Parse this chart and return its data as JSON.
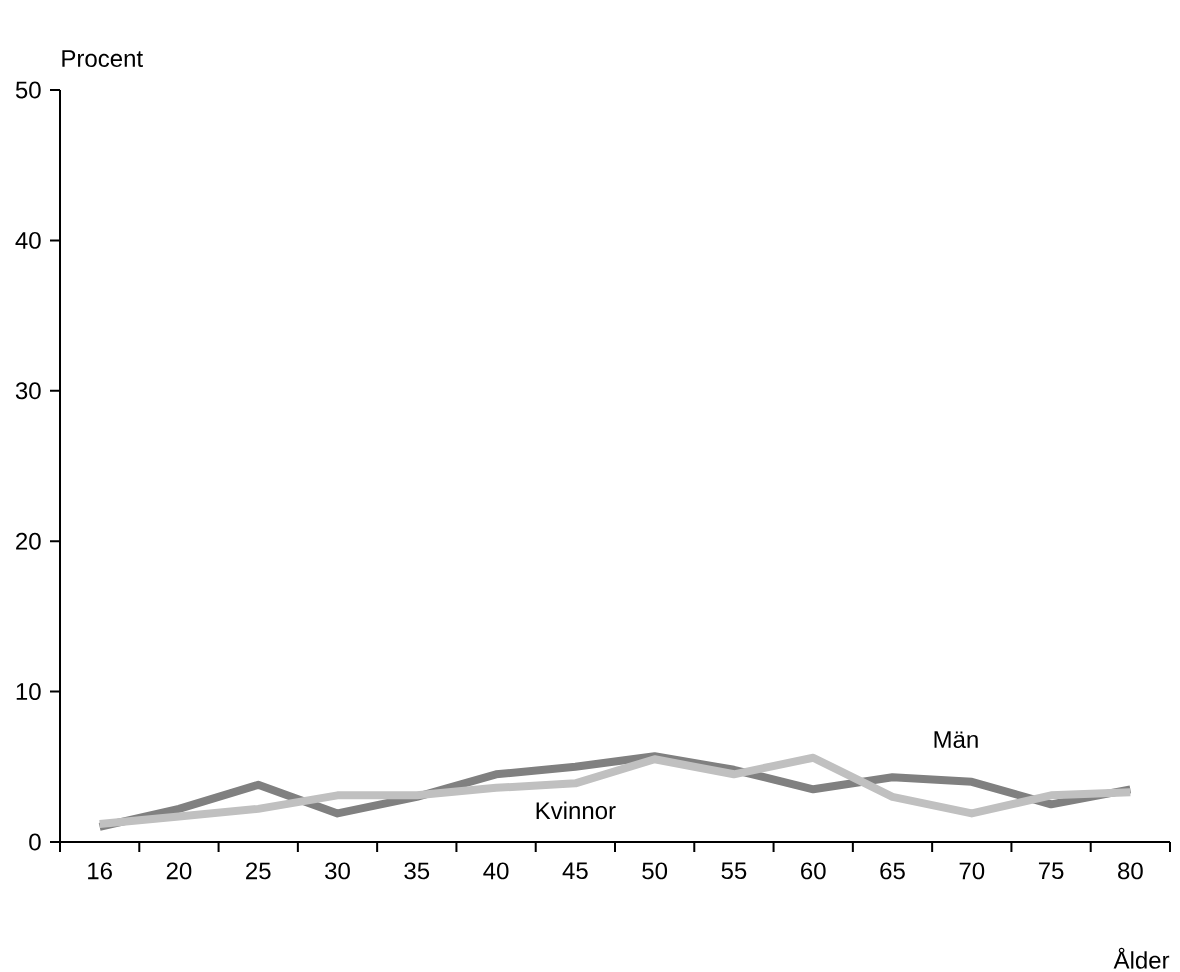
{
  "chart_data": {
    "type": "line",
    "xlabel": "Ålder",
    "ylabel": "Procent",
    "categories": [
      "16",
      "20",
      "25",
      "30",
      "35",
      "40",
      "45",
      "50",
      "55",
      "60",
      "65",
      "70",
      "75",
      "80"
    ],
    "ylim": [
      0,
      50
    ],
    "yticks": [
      0,
      10,
      20,
      30,
      40,
      50
    ],
    "marker": "none",
    "line_style": "solid",
    "series": [
      {
        "name": "Män",
        "color": "#808080",
        "values": [
          1.0,
          2.2,
          3.8,
          1.9,
          3.0,
          4.5,
          5.0,
          5.7,
          4.8,
          3.5,
          4.3,
          4.0,
          2.5,
          3.5
        ]
      },
      {
        "name": "Kvinnor",
        "color": "#c0c0c0",
        "values": [
          1.2,
          1.7,
          2.2,
          3.1,
          3.1,
          3.6,
          3.9,
          5.5,
          4.5,
          5.6,
          3.0,
          1.9,
          3.1,
          3.3
        ]
      }
    ]
  }
}
